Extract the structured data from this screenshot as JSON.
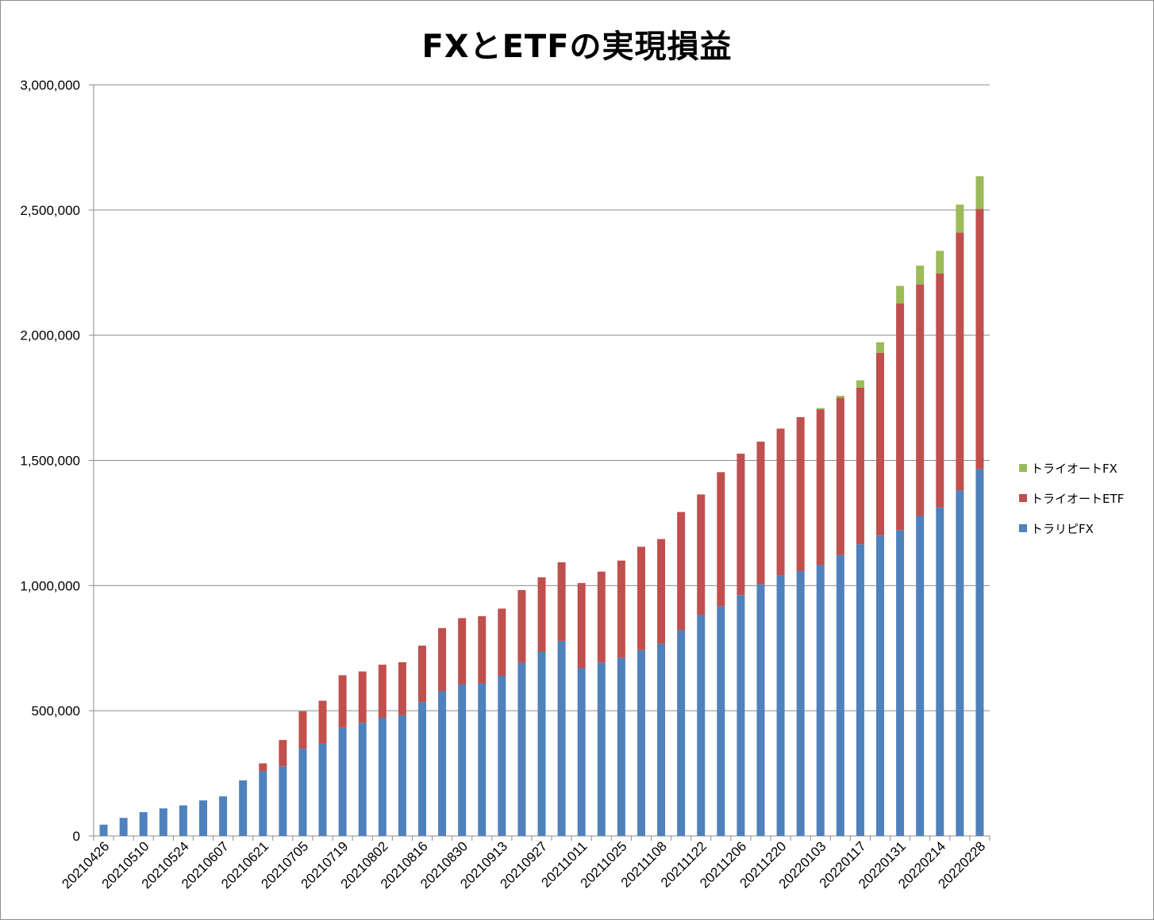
{
  "chart_data": {
    "type": "bar",
    "stacked": true,
    "title": "FXとETFの実現損益",
    "xlabel": "",
    "ylabel": "",
    "ylim": [
      0,
      3000000
    ],
    "yticks": [
      "0",
      "500,000",
      "1,000,000",
      "1,500,000",
      "2,000,000",
      "2,500,000",
      "3,000,000"
    ],
    "grid": true,
    "legend_position": "right",
    "categories": [
      "20210426",
      "20210503",
      "20210510",
      "20210517",
      "20210524",
      "20210531",
      "20210607",
      "20210614",
      "20210621",
      "20210628",
      "20210705",
      "20210712",
      "20210719",
      "20210726",
      "20210802",
      "20210809",
      "20210816",
      "20210823",
      "20210830",
      "20210906",
      "20210913",
      "20210920",
      "20210927",
      "20211004",
      "20211011",
      "20211018",
      "20211025",
      "20211101",
      "20211108",
      "20211115",
      "20211122",
      "20211129",
      "20211206",
      "20211213",
      "20211220",
      "20211227",
      "20220103",
      "20220110",
      "20220117",
      "20220124",
      "20220131",
      "20220207",
      "20220214",
      "20220221",
      "20220228"
    ],
    "xtick_labels": [
      "20210426",
      "",
      "20210510",
      "",
      "20210524",
      "",
      "20210607",
      "",
      "20210621",
      "",
      "20210705",
      "",
      "20210719",
      "",
      "20210802",
      "",
      "20210816",
      "",
      "20210830",
      "",
      "20210913",
      "",
      "20210927",
      "",
      "20211011",
      "",
      "20211025",
      "",
      "20211108",
      "",
      "20211122",
      "",
      "20211206",
      "",
      "20211220",
      "",
      "20220103",
      "",
      "20220117",
      "",
      "20220131",
      "",
      "20220214",
      "",
      "20220228"
    ],
    "series": [
      {
        "name": "トラリピFX",
        "color": "#4f81bd",
        "values": [
          45000,
          72000,
          95000,
          110000,
          122000,
          142000,
          158000,
          222000,
          258000,
          278000,
          348000,
          368000,
          432000,
          452000,
          472000,
          482000,
          535000,
          578000,
          605000,
          610000,
          640000,
          692000,
          735000,
          778000,
          670000,
          693000,
          712000,
          742000,
          768000,
          822000,
          882000,
          918000,
          962000,
          1005000,
          1042000,
          1058000,
          1082000,
          1122000,
          1165000,
          1200000,
          1222000,
          1278000,
          1312000,
          1380000,
          1465000
        ]
      },
      {
        "name": "トライオートETF",
        "color": "#c0504d",
        "values": [
          0,
          0,
          0,
          0,
          0,
          0,
          0,
          0,
          32000,
          105000,
          150000,
          172000,
          210000,
          205000,
          212000,
          212000,
          225000,
          252000,
          265000,
          268000,
          268000,
          290000,
          298000,
          315000,
          340000,
          363000,
          388000,
          413000,
          418000,
          472000,
          482000,
          535000,
          565000,
          570000,
          585000,
          615000,
          622000,
          628000,
          625000,
          730000,
          905000,
          925000,
          935000,
          1030000,
          1040000
        ]
      },
      {
        "name": "トライオートFX",
        "color": "#9bbb59",
        "values": [
          0,
          0,
          0,
          0,
          0,
          0,
          0,
          0,
          0,
          0,
          0,
          0,
          0,
          0,
          0,
          0,
          0,
          0,
          0,
          0,
          0,
          0,
          0,
          0,
          0,
          0,
          0,
          0,
          0,
          0,
          0,
          0,
          0,
          0,
          0,
          0,
          5000,
          8000,
          30000,
          42000,
          70000,
          75000,
          90000,
          112000,
          130000
        ]
      }
    ]
  }
}
